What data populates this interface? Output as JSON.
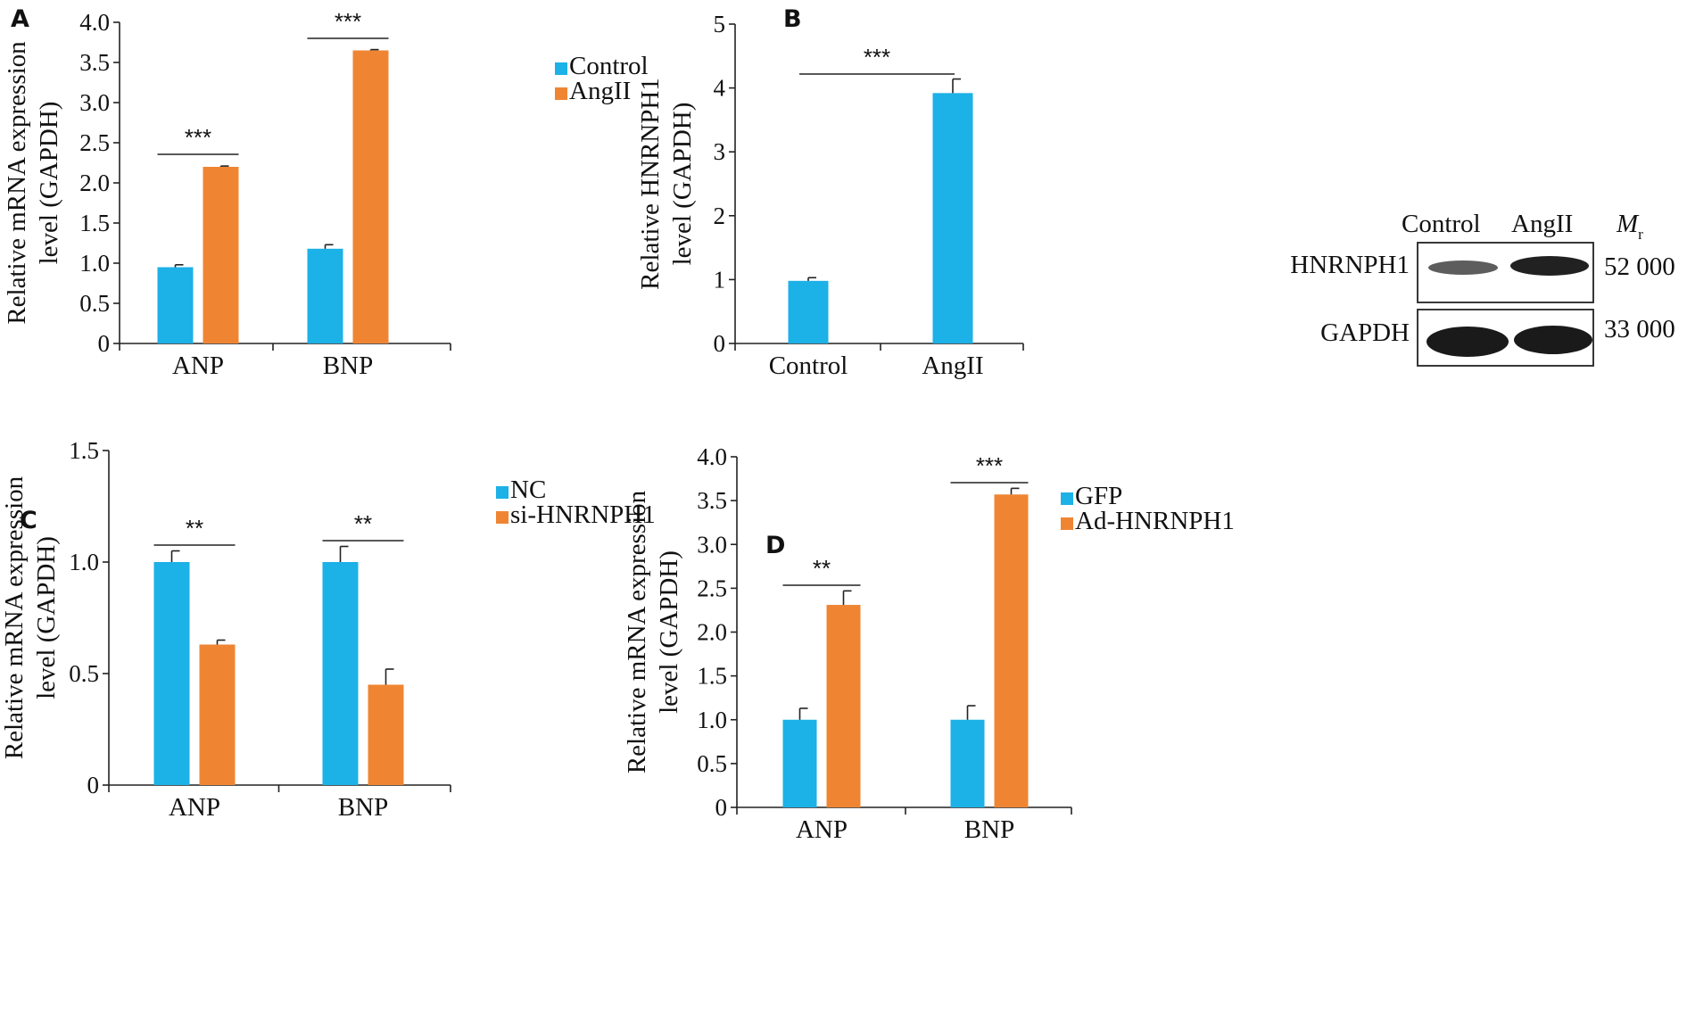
{
  "colors": {
    "control": "#1cb1e7",
    "treatment": "#ef8533",
    "axis": "#222222",
    "band": "#1a1a1a"
  },
  "chart_data": [
    {
      "panel": "A",
      "type": "bar",
      "ylabel_lines": [
        "Relative mRNA expression",
        "level (GAPDH)"
      ],
      "ylim": [
        0,
        4.0
      ],
      "yticks": [
        "0",
        "0.5",
        "1.0",
        "1.5",
        "2.0",
        "2.5",
        "3.0",
        "3.5",
        "4.0"
      ],
      "categories": [
        "ANP",
        "BNP"
      ],
      "series": [
        {
          "name": "Control",
          "values": [
            0.95,
            1.18
          ],
          "errors": [
            0.03,
            0.05
          ]
        },
        {
          "name": "AngII",
          "values": [
            2.2,
            3.65
          ],
          "errors": [
            0.01,
            0.01
          ]
        }
      ],
      "significance": [
        "***",
        "***"
      ],
      "legend": "top-right"
    },
    {
      "panel": "B",
      "type": "bar",
      "ylabel_lines": [
        "Relative HNRNPH1",
        "level (GAPDH)"
      ],
      "ylim": [
        0,
        5
      ],
      "yticks": [
        "0",
        "1",
        "2",
        "3",
        "4",
        "5"
      ],
      "categories": [
        "Control",
        "AngII"
      ],
      "series": [
        {
          "name": "",
          "values": [
            0.98,
            3.92
          ],
          "errors": [
            0.05,
            0.22
          ]
        }
      ],
      "significance": [
        "***"
      ]
    },
    {
      "panel": "C",
      "type": "bar",
      "ylabel_lines": [
        "Relative mRNA expression",
        "level (GAPDH)"
      ],
      "ylim": [
        0,
        1.5
      ],
      "yticks": [
        "0",
        "0.5",
        "1.0",
        "1.5"
      ],
      "categories": [
        "ANP",
        "BNP"
      ],
      "series": [
        {
          "name": "NC",
          "values": [
            1.0,
            1.0
          ],
          "errors": [
            0.05,
            0.07
          ]
        },
        {
          "name": "si-HNRNPH1",
          "values": [
            0.63,
            0.45
          ],
          "errors": [
            0.02,
            0.07
          ]
        }
      ],
      "significance": [
        "**",
        "**"
      ],
      "legend": "top-right"
    },
    {
      "panel": "D",
      "type": "bar",
      "ylabel_lines": [
        "Relative mRNA expression",
        "level (GAPDH)"
      ],
      "ylim": [
        0,
        4.0
      ],
      "yticks": [
        "0",
        "0.5",
        "1.0",
        "1.5",
        "2.0",
        "2.5",
        "3.0",
        "3.5",
        "4.0"
      ],
      "categories": [
        "ANP",
        "BNP"
      ],
      "series": [
        {
          "name": "GFP",
          "values": [
            1.0,
            1.0
          ],
          "errors": [
            0.13,
            0.16
          ]
        },
        {
          "name": "Ad-HNRNPH1",
          "values": [
            2.31,
            3.57
          ],
          "errors": [
            0.16,
            0.07
          ]
        }
      ],
      "significance": [
        "**",
        "***"
      ],
      "legend": "top-right"
    }
  ],
  "western_blot": {
    "lanes": [
      "Control",
      "AngII"
    ],
    "mr_label": "M",
    "mr_subscript": "r",
    "rows": [
      {
        "protein": "HNRNPH1",
        "mr": "52 000",
        "band_intensity": [
          0.55,
          0.95
        ]
      },
      {
        "protein": "GAPDH",
        "mr": "33 000",
        "band_intensity": [
          1.0,
          1.0
        ]
      }
    ]
  }
}
